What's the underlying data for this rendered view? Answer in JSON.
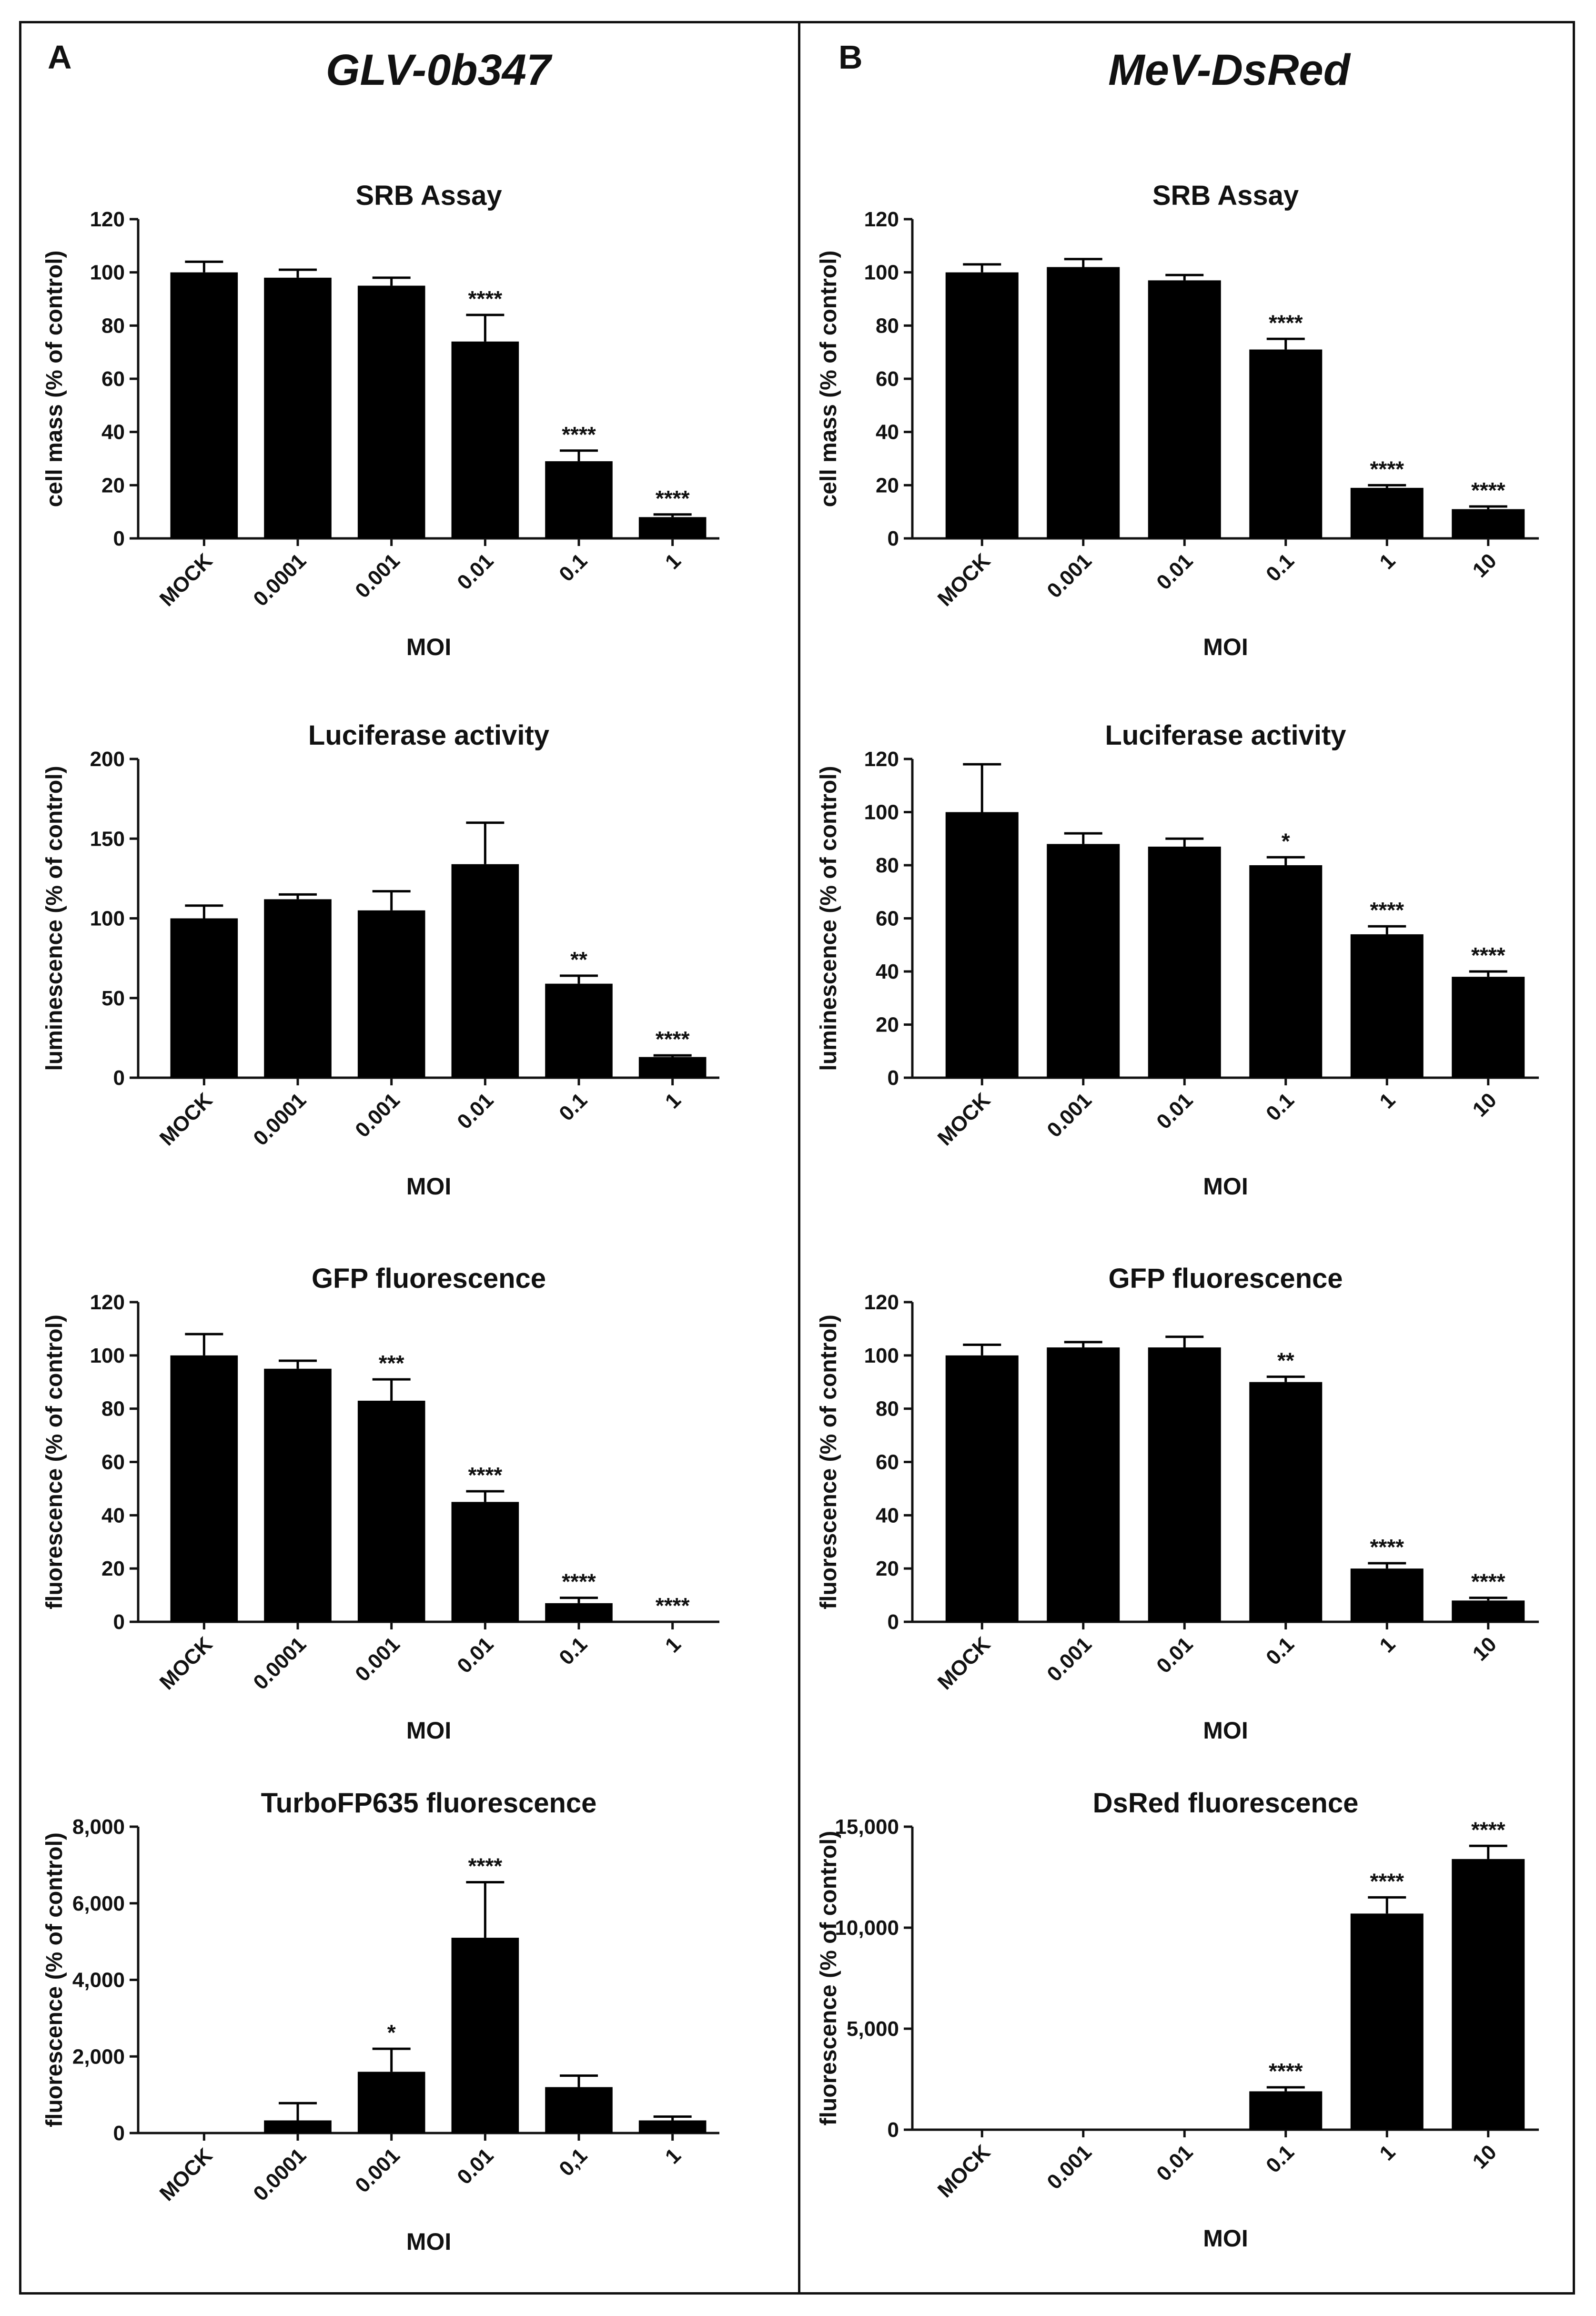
{
  "panels": [
    {
      "letter": "A",
      "title": "GLV-0b347"
    },
    {
      "letter": "B",
      "title": "MeV-DsRed"
    }
  ],
  "chart_data": [
    {
      "panel": "A",
      "type": "bar",
      "title": "SRB Assay",
      "xlabel": "MOI",
      "ylabel": "cell mass (% of control)",
      "categories": [
        "MOCK",
        "0.0001",
        "0.001",
        "0.01",
        "0.1",
        "1"
      ],
      "values": [
        100,
        98,
        95,
        74,
        29,
        8
      ],
      "errors": [
        4,
        3,
        3,
        10,
        4,
        1
      ],
      "significance": [
        "",
        "",
        "",
        "****",
        "****",
        "****"
      ],
      "ylim": [
        0,
        120
      ],
      "yticks": [
        0,
        20,
        40,
        60,
        80,
        100,
        120
      ],
      "ytick_labels": [
        "0",
        "20",
        "40",
        "60",
        "80",
        "100",
        "120"
      ]
    },
    {
      "panel": "A",
      "type": "bar",
      "title": "Luciferase activity",
      "xlabel": "MOI",
      "ylabel": "luminescence (% of control)",
      "categories": [
        "MOCK",
        "0.0001",
        "0.001",
        "0.01",
        "0.1",
        "1"
      ],
      "values": [
        100,
        112,
        105,
        134,
        59,
        13
      ],
      "errors": [
        8,
        3,
        12,
        26,
        5,
        1
      ],
      "significance": [
        "",
        "",
        "",
        "",
        "**",
        "****"
      ],
      "ylim": [
        0,
        200
      ],
      "yticks": [
        0,
        50,
        100,
        150,
        200
      ],
      "ytick_labels": [
        "0",
        "50",
        "100",
        "150",
        "200"
      ]
    },
    {
      "panel": "A",
      "type": "bar",
      "title": "GFP fluorescence",
      "xlabel": "MOI",
      "ylabel": "fluorescence (% of control)",
      "categories": [
        "MOCK",
        "0.0001",
        "0.001",
        "0.01",
        "0.1",
        "1"
      ],
      "values": [
        100,
        95,
        83,
        45,
        7,
        0
      ],
      "errors": [
        8,
        3,
        8,
        4,
        2,
        0
      ],
      "significance": [
        "",
        "",
        "***",
        "****",
        "****",
        "****"
      ],
      "ylim": [
        0,
        120
      ],
      "yticks": [
        0,
        20,
        40,
        60,
        80,
        100,
        120
      ],
      "ytick_labels": [
        "0",
        "20",
        "40",
        "60",
        "80",
        "100",
        "120"
      ]
    },
    {
      "panel": "A",
      "type": "bar",
      "title": "TurboFP635 fluorescence",
      "xlabel": "MOI",
      "ylabel": "fluorescence (% of control)",
      "categories": [
        "MOCK",
        "0.0001",
        "0.001",
        "0.01",
        "0,1",
        "1"
      ],
      "values": [
        0,
        330,
        1600,
        5100,
        1200,
        330
      ],
      "errors": [
        0,
        450,
        600,
        1450,
        300,
        100
      ],
      "significance": [
        "",
        "",
        "*",
        "****",
        "",
        ""
      ],
      "ylim": [
        0,
        8000
      ],
      "yticks": [
        0,
        2000,
        4000,
        6000,
        8000
      ],
      "ytick_labels": [
        "0",
        "2,000",
        "4,000",
        "6,000",
        "8,000"
      ]
    },
    {
      "panel": "B",
      "type": "bar",
      "title": "SRB Assay",
      "xlabel": "MOI",
      "ylabel": "cell mass (% of control)",
      "categories": [
        "MOCK",
        "0.001",
        "0.01",
        "0.1",
        "1",
        "10"
      ],
      "values": [
        100,
        102,
        97,
        71,
        19,
        11
      ],
      "errors": [
        3,
        3,
        2,
        4,
        1,
        1
      ],
      "significance": [
        "",
        "",
        "",
        "****",
        "****",
        "****"
      ],
      "ylim": [
        0,
        120
      ],
      "yticks": [
        0,
        20,
        40,
        60,
        80,
        100,
        120
      ],
      "ytick_labels": [
        "0",
        "20",
        "40",
        "60",
        "80",
        "100",
        "120"
      ]
    },
    {
      "panel": "B",
      "type": "bar",
      "title": "Luciferase activity",
      "xlabel": "MOI",
      "ylabel": "luminescence (% of control)",
      "categories": [
        "MOCK",
        "0.001",
        "0.01",
        "0.1",
        "1",
        "10"
      ],
      "values": [
        100,
        88,
        87,
        80,
        54,
        38
      ],
      "errors": [
        18,
        4,
        3,
        3,
        3,
        2
      ],
      "significance": [
        "",
        "",
        "",
        "*",
        "****",
        "****"
      ],
      "ylim": [
        0,
        120
      ],
      "yticks": [
        0,
        20,
        40,
        60,
        80,
        100,
        120
      ],
      "ytick_labels": [
        "0",
        "20",
        "40",
        "60",
        "80",
        "100",
        "120"
      ]
    },
    {
      "panel": "B",
      "type": "bar",
      "title": "GFP fluorescence",
      "xlabel": "MOI",
      "ylabel": "fluorescence (% of control)",
      "categories": [
        "MOCK",
        "0.001",
        "0.01",
        "0.1",
        "1",
        "10"
      ],
      "values": [
        100,
        103,
        103,
        90,
        20,
        8
      ],
      "errors": [
        4,
        2,
        4,
        2,
        2,
        1
      ],
      "significance": [
        "",
        "",
        "",
        "**",
        "****",
        "****"
      ],
      "ylim": [
        0,
        120
      ],
      "yticks": [
        0,
        20,
        40,
        60,
        80,
        100,
        120
      ],
      "ytick_labels": [
        "0",
        "20",
        "40",
        "60",
        "80",
        "100",
        "120"
      ]
    },
    {
      "panel": "B",
      "type": "bar",
      "title": "DsRed fluorescence",
      "xlabel": "MOI",
      "ylabel": "fluorescence (% of control)",
      "categories": [
        "MOCK",
        "0.001",
        "0.01",
        "0.1",
        "1",
        "10"
      ],
      "values": [
        0,
        0,
        0,
        1900,
        10700,
        13400
      ],
      "errors": [
        0,
        0,
        0,
        200,
        800,
        650
      ],
      "significance": [
        "",
        "",
        "",
        "****",
        "****",
        "****"
      ],
      "ylim": [
        0,
        15000
      ],
      "yticks": [
        0,
        5000,
        10000,
        15000
      ],
      "ytick_labels": [
        "0",
        "5,000",
        "10,000",
        "15,000"
      ]
    }
  ]
}
